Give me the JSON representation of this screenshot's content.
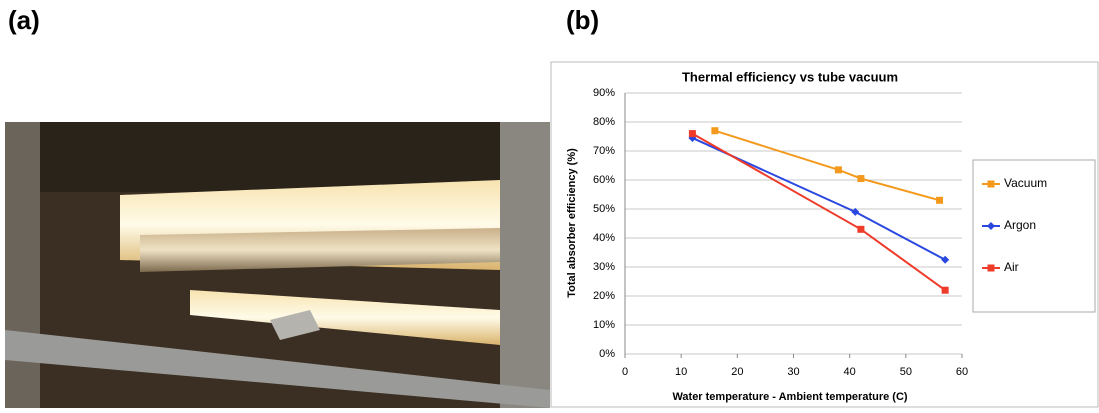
{
  "panel_labels": [
    "(a)",
    "(b)"
  ],
  "chart_data": {
    "type": "line",
    "title": "Thermal efficiency vs tube vacuum",
    "x_label": "Water temperature - Ambient temperature (C)",
    "y_label": "Total absorber efficiency (%)",
    "xlim": [
      0,
      60
    ],
    "xticks": [
      0,
      10,
      20,
      30,
      40,
      50,
      60
    ],
    "ylim": [
      0,
      90
    ],
    "yticks": [
      {
        "value": 0,
        "label": "0%"
      },
      {
        "value": 10,
        "label": "10%"
      },
      {
        "value": 20,
        "label": "20%"
      },
      {
        "value": 30,
        "label": "30%"
      },
      {
        "value": 40,
        "label": "40%"
      },
      {
        "value": 50,
        "label": "50%"
      },
      {
        "value": 60,
        "label": "60%"
      },
      {
        "value": 70,
        "label": "70%"
      },
      {
        "value": 80,
        "label": "80%"
      },
      {
        "value": 90,
        "label": "90%"
      }
    ],
    "grid": true,
    "legend": "right",
    "series": [
      {
        "name": "Vacuum",
        "color": "#f39a1e",
        "marker": "square",
        "x": [
          16,
          38,
          42,
          56
        ],
        "values": [
          77,
          63.5,
          60.5,
          53
        ]
      },
      {
        "name": "Argon",
        "color": "#2a48e0",
        "marker": "diamond",
        "x": [
          12,
          41,
          57
        ],
        "values": [
          74.5,
          49,
          32.5
        ]
      },
      {
        "name": "Air",
        "color": "#ee3b2a",
        "marker": "square",
        "x": [
          12,
          42,
          57
        ],
        "values": [
          76,
          43,
          22
        ]
      }
    ]
  }
}
